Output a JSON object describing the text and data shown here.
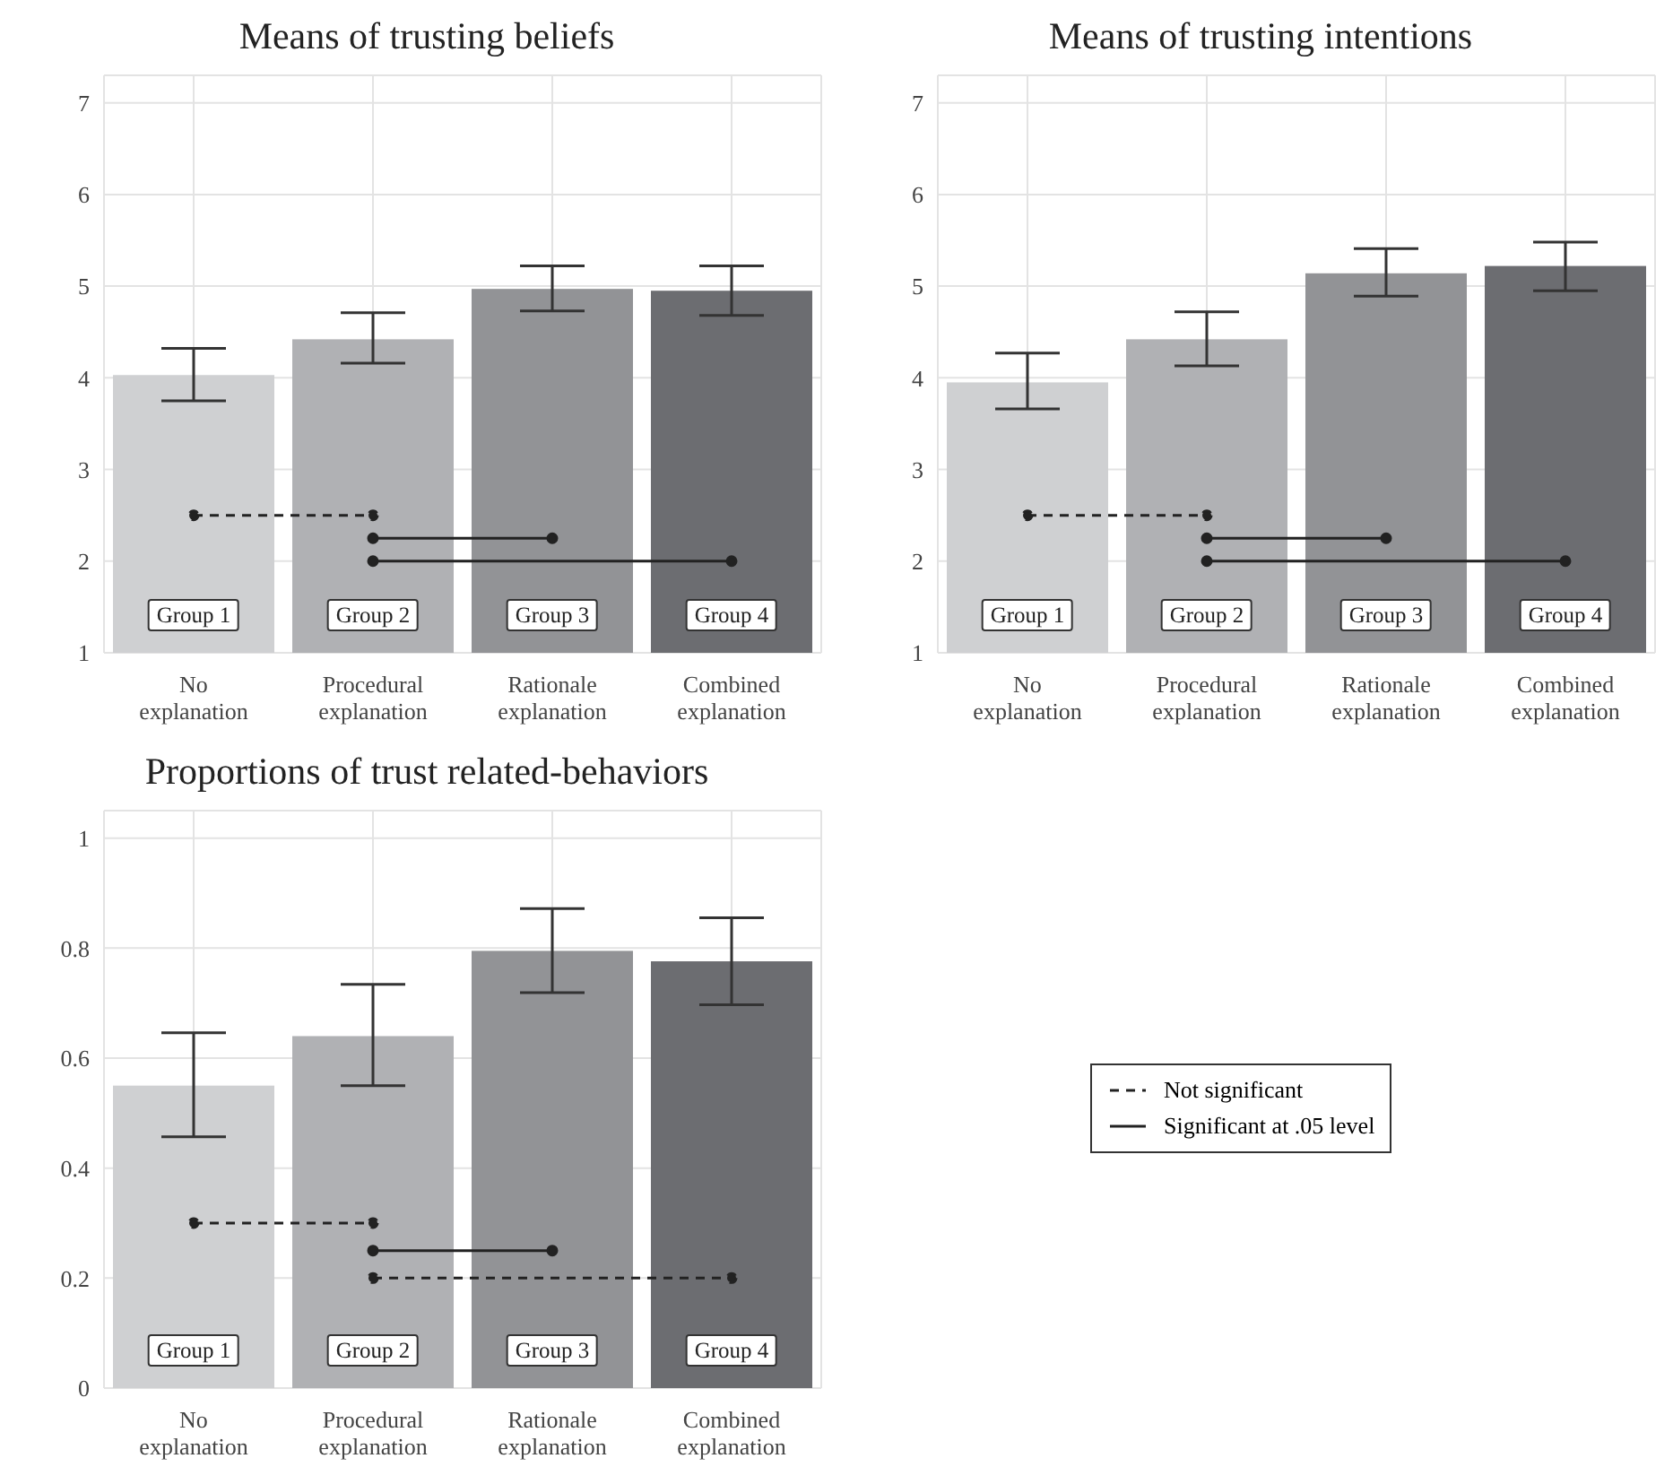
{
  "chart_data": [
    {
      "type": "bar",
      "title": "Means of trusting beliefs",
      "categories": [
        "No explanation",
        "Procedural explanation",
        "Rationale explanation",
        "Combined explanation"
      ],
      "ylim": [
        1,
        7.3
      ],
      "yticks": [
        1,
        2,
        3,
        4,
        5,
        6,
        7
      ],
      "grid": true,
      "colors": [
        "#cfd0d2",
        "#b0b1b4",
        "#929396",
        "#6c6d71"
      ],
      "values": [
        4.03,
        4.42,
        4.97,
        4.95
      ],
      "errors": [
        [
          3.75,
          4.32
        ],
        [
          4.16,
          4.71
        ],
        [
          4.73,
          5.22
        ],
        [
          4.68,
          5.22
        ]
      ],
      "series": [
        {
          "type": "line",
          "color": "#222222",
          "line_style": "dashed",
          "marker": "circle",
          "x": [
            "No explanation",
            "Procedural explanation"
          ],
          "values": [
            2.5,
            2.5
          ]
        },
        {
          "type": "line",
          "color": "#222222",
          "line_style": "solid",
          "marker": "circle",
          "x": [
            "Procedural explanation",
            "Rationale explanation"
          ],
          "values": [
            2.25,
            2.25
          ]
        },
        {
          "type": "line",
          "color": "#222222",
          "line_style": "solid",
          "marker": "circle",
          "x": [
            "Procedural explanation",
            "Combined explanation"
          ],
          "values": [
            2.0,
            2.0
          ]
        }
      ],
      "annotations": [
        "Group 1",
        "Group 2",
        "Group 3",
        "Group 4"
      ]
    },
    {
      "type": "bar",
      "title": "Means of trusting intentions",
      "categories": [
        "No explanation",
        "Procedural explanation",
        "Rationale explanation",
        "Combined explanation"
      ],
      "ylim": [
        1,
        7.3
      ],
      "yticks": [
        1,
        2,
        3,
        4,
        5,
        6,
        7
      ],
      "grid": true,
      "colors": [
        "#cfd0d2",
        "#b0b1b4",
        "#929396",
        "#6c6d71"
      ],
      "values": [
        3.95,
        4.42,
        5.14,
        5.22
      ],
      "errors": [
        [
          3.66,
          4.27
        ],
        [
          4.13,
          4.72
        ],
        [
          4.89,
          5.41
        ],
        [
          4.95,
          5.48
        ]
      ],
      "series": [
        {
          "type": "line",
          "color": "#222222",
          "line_style": "dashed",
          "marker": "circle",
          "x": [
            "No explanation",
            "Procedural explanation"
          ],
          "values": [
            2.5,
            2.5
          ]
        },
        {
          "type": "line",
          "color": "#222222",
          "line_style": "solid",
          "marker": "circle",
          "x": [
            "Procedural explanation",
            "Rationale explanation"
          ],
          "values": [
            2.25,
            2.25
          ]
        },
        {
          "type": "line",
          "color": "#222222",
          "line_style": "solid",
          "marker": "circle",
          "x": [
            "Procedural explanation",
            "Combined explanation"
          ],
          "values": [
            2.0,
            2.0
          ]
        }
      ],
      "annotations": [
        "Group 1",
        "Group 2",
        "Group 3",
        "Group 4"
      ]
    },
    {
      "type": "bar",
      "title": "Proportions of trust related-behaviors",
      "categories": [
        "No explanation",
        "Procedural explanation",
        "Rationale explanation",
        "Combined explanation"
      ],
      "ylim": [
        0,
        1.05
      ],
      "yticks": [
        0,
        0.2,
        0.4,
        0.6,
        0.8,
        1
      ],
      "grid": true,
      "legend": "right",
      "colors": [
        "#cfd0d2",
        "#b0b1b4",
        "#929396",
        "#6c6d71"
      ],
      "values": [
        0.55,
        0.64,
        0.795,
        0.776
      ],
      "errors": [
        [
          0.457,
          0.646
        ],
        [
          0.55,
          0.734
        ],
        [
          0.719,
          0.872
        ],
        [
          0.697,
          0.855
        ]
      ],
      "series": [
        {
          "type": "line",
          "name": "Not significant",
          "color": "#222222",
          "line_style": "dashed",
          "marker": "circle",
          "x": [
            "No explanation",
            "Procedural explanation"
          ],
          "values": [
            0.3,
            0.3
          ]
        },
        {
          "type": "line",
          "name": "Significant at .05 level",
          "color": "#222222",
          "line_style": "solid",
          "marker": "circle",
          "x": [
            "Procedural explanation",
            "Rationale explanation"
          ],
          "values": [
            0.25,
            0.25
          ]
        },
        {
          "type": "line",
          "color": "#222222",
          "line_style": "dashed",
          "marker": "circle",
          "x": [
            "Procedural explanation",
            "Combined explanation"
          ],
          "values": [
            0.2,
            0.2
          ]
        }
      ],
      "annotations": [
        "Group 1",
        "Group 2",
        "Group 3",
        "Group 4"
      ]
    }
  ]
}
